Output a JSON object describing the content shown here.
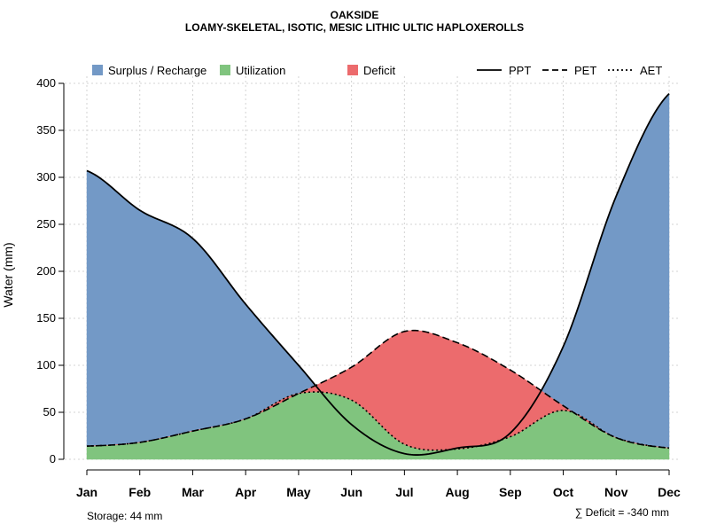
{
  "chart_data": {
    "type": "area",
    "title": "OAKSIDE",
    "subtitle": "LOAMY-SKELETAL, ISOTIC, MESIC LITHIC ULTIC HAPLOXEROLLS",
    "xlabel": "",
    "ylabel": "Water (mm)",
    "categories": [
      "Jan",
      "Feb",
      "Mar",
      "Apr",
      "May",
      "Jun",
      "Jul",
      "Aug",
      "Sep",
      "Oct",
      "Nov",
      "Dec"
    ],
    "ylim": [
      0,
      400
    ],
    "yticks": [
      0,
      50,
      100,
      150,
      200,
      250,
      300,
      350,
      400
    ],
    "grid": true,
    "series": [
      {
        "name": "PPT",
        "style": "solid",
        "values": [
          307,
          265,
          235,
          165,
          100,
          37,
          6,
          12,
          28,
          120,
          280,
          389
        ]
      },
      {
        "name": "PET",
        "style": "dashed",
        "values": [
          14,
          18,
          30,
          43,
          70,
          98,
          136,
          124,
          95,
          57,
          23,
          12
        ]
      },
      {
        "name": "AET",
        "style": "dotted",
        "values": [
          14,
          18,
          30,
          43,
          70,
          63,
          16,
          11,
          24,
          52,
          23,
          12
        ]
      }
    ],
    "legend": {
      "placement": "top",
      "fill_items": [
        {
          "label": "Surplus / Recharge",
          "color": "#7399c6"
        },
        {
          "label": "Utilization",
          "color": "#80c47e"
        },
        {
          "label": "Deficit",
          "color": "#ec6b6d"
        }
      ],
      "line_items": [
        {
          "label": "PPT",
          "style": "solid"
        },
        {
          "label": "PET",
          "style": "dashed"
        },
        {
          "label": "AET",
          "style": "dotted"
        }
      ]
    },
    "annotations": {
      "storage": "Storage: 44 mm",
      "deficit": "∑ Deficit = -340 mm"
    }
  }
}
